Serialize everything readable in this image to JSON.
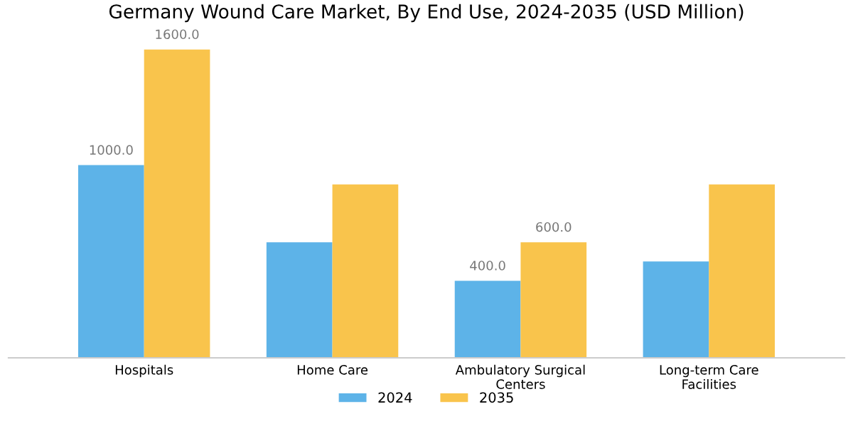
{
  "chart_data": {
    "type": "bar",
    "title": "Germany Wound Care Market, By End Use, 2024-2035 (USD Million)",
    "categories": [
      "Hospitals",
      "Home Care",
      "Ambulatory Surgical\nCenters",
      "Long-term Care\nFacilities"
    ],
    "series": [
      {
        "name": "2024",
        "color": "#5db3e8",
        "values": [
          1000,
          600,
          400,
          500
        ],
        "value_labels": [
          "1000.0",
          null,
          "400.0",
          null
        ]
      },
      {
        "name": "2035",
        "color": "#f9c44c",
        "values": [
          1600,
          900,
          600,
          900
        ],
        "value_labels": [
          "1600.0",
          null,
          "600.0",
          null
        ]
      }
    ],
    "legend": "bottom",
    "grid": false
  }
}
